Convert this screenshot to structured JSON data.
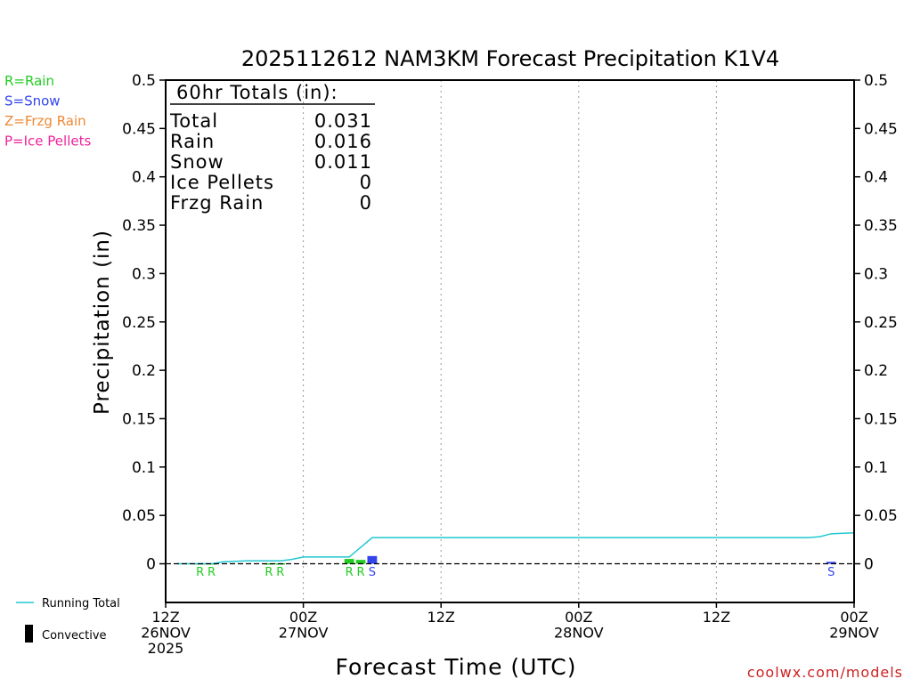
{
  "chart_data": {
    "type": "bar+line",
    "title": "2025112612 NAM3KM Forecast Precipitation K1V4",
    "xlabel": "Forecast Time (UTC)",
    "ylabel": "Precipitation (in)",
    "ylim": [
      -0.04,
      0.5
    ],
    "yticks": [
      0,
      0.05,
      0.1,
      0.15,
      0.2,
      0.25,
      0.3,
      0.35,
      0.4,
      0.45,
      0.5
    ],
    "ytick_labels": [
      "0",
      "0.05",
      "0.1",
      "0.15",
      "0.2",
      "0.25",
      "0.3",
      "0.35",
      "0.4",
      "0.45",
      "0.5"
    ],
    "xlim_hours": [
      0,
      60
    ],
    "xticks": [
      {
        "hour": 0,
        "lines": [
          "12Z",
          "26NOV",
          "2025"
        ]
      },
      {
        "hour": 12,
        "lines": [
          "00Z",
          "27NOV"
        ]
      },
      {
        "hour": 24,
        "lines": [
          "12Z"
        ]
      },
      {
        "hour": 36,
        "lines": [
          "00Z",
          "28NOV"
        ]
      },
      {
        "hour": 48,
        "lines": [
          "12Z"
        ]
      },
      {
        "hour": 60,
        "lines": [
          "00Z",
          "29NOV"
        ]
      }
    ],
    "grid": "vertical dotted at tick hours",
    "ptype_legend": [
      {
        "code": "R",
        "label": "R=Rain",
        "color": "#22cc22"
      },
      {
        "code": "S",
        "label": "S=Snow",
        "color": "#3344ee"
      },
      {
        "code": "Z",
        "label": "Z=Frzg Rain",
        "color": "#ee8833"
      },
      {
        "code": "P",
        "label": "P=Ice Pellets",
        "color": "#ee2299"
      }
    ],
    "totals": {
      "header": "60hr Totals (in):",
      "rows": [
        {
          "label": "Total",
          "value": "0.031"
        },
        {
          "label": "Rain",
          "value": "0.016"
        },
        {
          "label": "Snow",
          "value": "0.011"
        },
        {
          "label": "Ice Pellets",
          "value": "0"
        },
        {
          "label": "Frzg Rain",
          "value": "0"
        }
      ]
    },
    "series": [
      {
        "name": "Hourly precipitation",
        "kind": "bar",
        "points": [
          {
            "hour": 3,
            "value": 0.0005,
            "type": "R"
          },
          {
            "hour": 4,
            "value": 0.0005,
            "type": "R"
          },
          {
            "hour": 9,
            "value": 0.0005,
            "type": "R"
          },
          {
            "hour": 10,
            "value": 0.0005,
            "type": "R"
          },
          {
            "hour": 16,
            "value": 0.005,
            "type": "R"
          },
          {
            "hour": 17,
            "value": 0.004,
            "type": "R"
          },
          {
            "hour": 18,
            "value": 0.008,
            "type": "S"
          },
          {
            "hour": 58,
            "value": 0.002,
            "type": "S"
          }
        ]
      },
      {
        "name": "Running Total",
        "kind": "line",
        "color": "#22c8d0",
        "x": [
          1,
          4,
          5,
          7,
          10,
          11,
          12,
          14,
          16,
          17,
          18,
          30,
          42,
          55,
          56,
          57,
          58,
          59,
          60
        ],
        "y": [
          0,
          0,
          0.002,
          0.003,
          0.003,
          0.0045,
          0.007,
          0.007,
          0.007,
          0.017,
          0.027,
          0.027,
          0.027,
          0.027,
          0.027,
          0.028,
          0.031,
          0.0315,
          0.032
        ]
      }
    ],
    "bottom_legend": [
      {
        "label": "Running Total",
        "symbol": "line",
        "color": "#22c8d0"
      },
      {
        "label": "Convective",
        "symbol": "bar",
        "color": "#000000"
      }
    ],
    "credit": "coolwx.com/models"
  }
}
